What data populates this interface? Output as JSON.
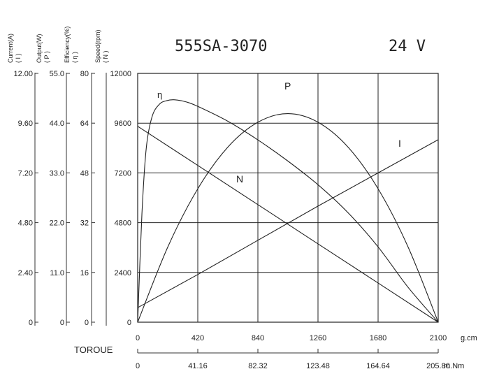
{
  "title": "555SA-3070",
  "voltage": "24 V",
  "chart_data": {
    "type": "line",
    "title": "555SA-3070",
    "x_unit": "g.cm",
    "x2_unit": "m.Nm",
    "x_label": "TOROUE",
    "xlim": [
      0,
      2100
    ],
    "x_ticks": [
      "0",
      "420",
      "840",
      "1260",
      "1680",
      "2100"
    ],
    "x2_ticks": [
      "0",
      "41.16",
      "82.32",
      "123.48",
      "164.64",
      "205.80"
    ],
    "y_axes": [
      {
        "key": "current",
        "label": "Current(A)",
        "symbol": "( I )",
        "range": [
          0,
          12.0
        ],
        "ticks": [
          "0",
          "2.40",
          "4.80",
          "7.20",
          "9.60",
          "12.00"
        ]
      },
      {
        "key": "output",
        "label": "Output(W)",
        "symbol": "( P )",
        "range": [
          0,
          55.0
        ],
        "ticks": [
          "0",
          "11.0",
          "22.0",
          "33.0",
          "44.0",
          "55.0"
        ]
      },
      {
        "key": "efficiency",
        "label": "Efficiency(%)",
        "symbol": "( η )",
        "range": [
          0,
          80
        ],
        "ticks": [
          "0",
          "16",
          "32",
          "48",
          "64",
          "80"
        ]
      },
      {
        "key": "speed",
        "label": "Speed(rpm)",
        "symbol": "( N )",
        "range": [
          0,
          12000
        ],
        "ticks": [
          "0",
          "2400",
          "4800",
          "7200",
          "9600",
          "12000"
        ]
      }
    ],
    "series": [
      {
        "name": "I",
        "axis": "current",
        "x": [
          0,
          420,
          840,
          1260,
          1680,
          2100
        ],
        "y": [
          0.7,
          2.3,
          3.95,
          5.6,
          7.2,
          8.8
        ]
      },
      {
        "name": "P",
        "axis": "output",
        "x": [
          0,
          210,
          420,
          630,
          840,
          1050,
          1260,
          1470,
          1680,
          1890,
          2100
        ],
        "y": [
          0,
          16.6,
          29.5,
          38.7,
          44.2,
          46.1,
          44.2,
          38.7,
          29.5,
          16.6,
          0
        ]
      },
      {
        "name": "N",
        "axis": "speed",
        "x": [
          0,
          420,
          840,
          1260,
          1680,
          2100
        ],
        "y": [
          9450,
          7560,
          5670,
          3780,
          1890,
          0
        ]
      },
      {
        "name": "η",
        "axis": "efficiency",
        "x": [
          0,
          30,
          60,
          100,
          150,
          200,
          260,
          340,
          420,
          630,
          840,
          1050,
          1260,
          1470,
          1680,
          1890,
          2100
        ],
        "y": [
          0,
          35,
          56,
          66,
          70,
          71.2,
          71.5,
          70.8,
          69.4,
          64.6,
          58.6,
          51.8,
          44.2,
          35.2,
          24.2,
          11.2,
          0
        ]
      }
    ]
  }
}
